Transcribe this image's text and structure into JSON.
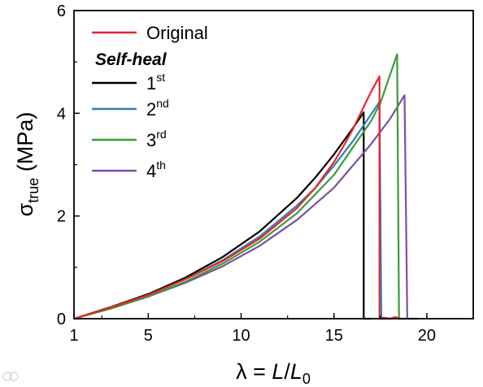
{
  "chart_data": {
    "type": "line",
    "xlabel": "λ = L/L0",
    "xlabel_parts": {
      "symbol": "λ = ",
      "num": "L",
      "slash": "/",
      "den": "L",
      "den_sub": "0"
    },
    "ylabel": "σtrue (MPa)",
    "ylabel_parts": {
      "symbol": "σ",
      "sub": "true",
      "unit": " (MPa)"
    },
    "xlim": [
      1,
      22.5
    ],
    "ylim": [
      0,
      6
    ],
    "xticks": [
      1,
      5,
      10,
      15,
      20
    ],
    "yticks": [
      0,
      2,
      4,
      6
    ],
    "grid": false,
    "legend_position": "top-left",
    "legend_header": "Self-heal",
    "series": [
      {
        "name": "Original",
        "legend_main": "Original",
        "legend_sup": "",
        "color": "#e8262a",
        "x": [
          1,
          3,
          5,
          7,
          9,
          11,
          13,
          14,
          15,
          15.5,
          16,
          16.5,
          17,
          17.3,
          17.45,
          17.45,
          17.7,
          18.0,
          18.3,
          18.6
        ],
        "y": [
          0,
          0.22,
          0.46,
          0.77,
          1.12,
          1.56,
          2.15,
          2.55,
          3.05,
          3.35,
          3.68,
          4.05,
          4.42,
          4.62,
          4.72,
          0.0,
          0.02,
          0.0,
          0.03,
          0.0
        ]
      },
      {
        "name": "1st",
        "legend_main": "1",
        "legend_sup": "st",
        "color": "#000000",
        "x": [
          1,
          3,
          5,
          7,
          9,
          11,
          13,
          14,
          15,
          15.5,
          16,
          16.6,
          16.6,
          16.8,
          17.0
        ],
        "y": [
          0,
          0.23,
          0.48,
          0.8,
          1.2,
          1.7,
          2.35,
          2.75,
          3.2,
          3.45,
          3.7,
          4.02,
          0.0,
          0.0,
          0.0
        ]
      },
      {
        "name": "2nd",
        "legend_main": "2",
        "legend_sup": "nd",
        "color": "#2f7fc0",
        "x": [
          1,
          3,
          5,
          7,
          9,
          11,
          13,
          14,
          15,
          16,
          17,
          17.45,
          17.55,
          17.8,
          18.0
        ],
        "y": [
          0,
          0.22,
          0.46,
          0.77,
          1.14,
          1.6,
          2.2,
          2.55,
          2.98,
          3.45,
          3.98,
          4.22,
          0.0,
          0.0,
          0.0
        ]
      },
      {
        "name": "3rd",
        "legend_main": "3",
        "legend_sup": "rd",
        "color": "#3a9c3a",
        "x": [
          1,
          3,
          5,
          7,
          9,
          11,
          13,
          15,
          17,
          17.5,
          18.4,
          18.5,
          18.8,
          19.1
        ],
        "y": [
          0,
          0.2,
          0.43,
          0.72,
          1.07,
          1.5,
          2.05,
          2.8,
          3.85,
          4.2,
          5.15,
          0.0,
          0.0,
          0.0
        ]
      },
      {
        "name": "4th",
        "legend_main": "4",
        "legend_sup": "th",
        "color": "#7b4fa6",
        "x": [
          1,
          3,
          5,
          7,
          9,
          11,
          13,
          15,
          17,
          18.0,
          18.8,
          18.95,
          19.2,
          19.5
        ],
        "y": [
          0,
          0.21,
          0.43,
          0.7,
          1.02,
          1.42,
          1.92,
          2.55,
          3.4,
          3.88,
          4.35,
          0.0,
          0.0,
          0.0
        ]
      }
    ]
  }
}
